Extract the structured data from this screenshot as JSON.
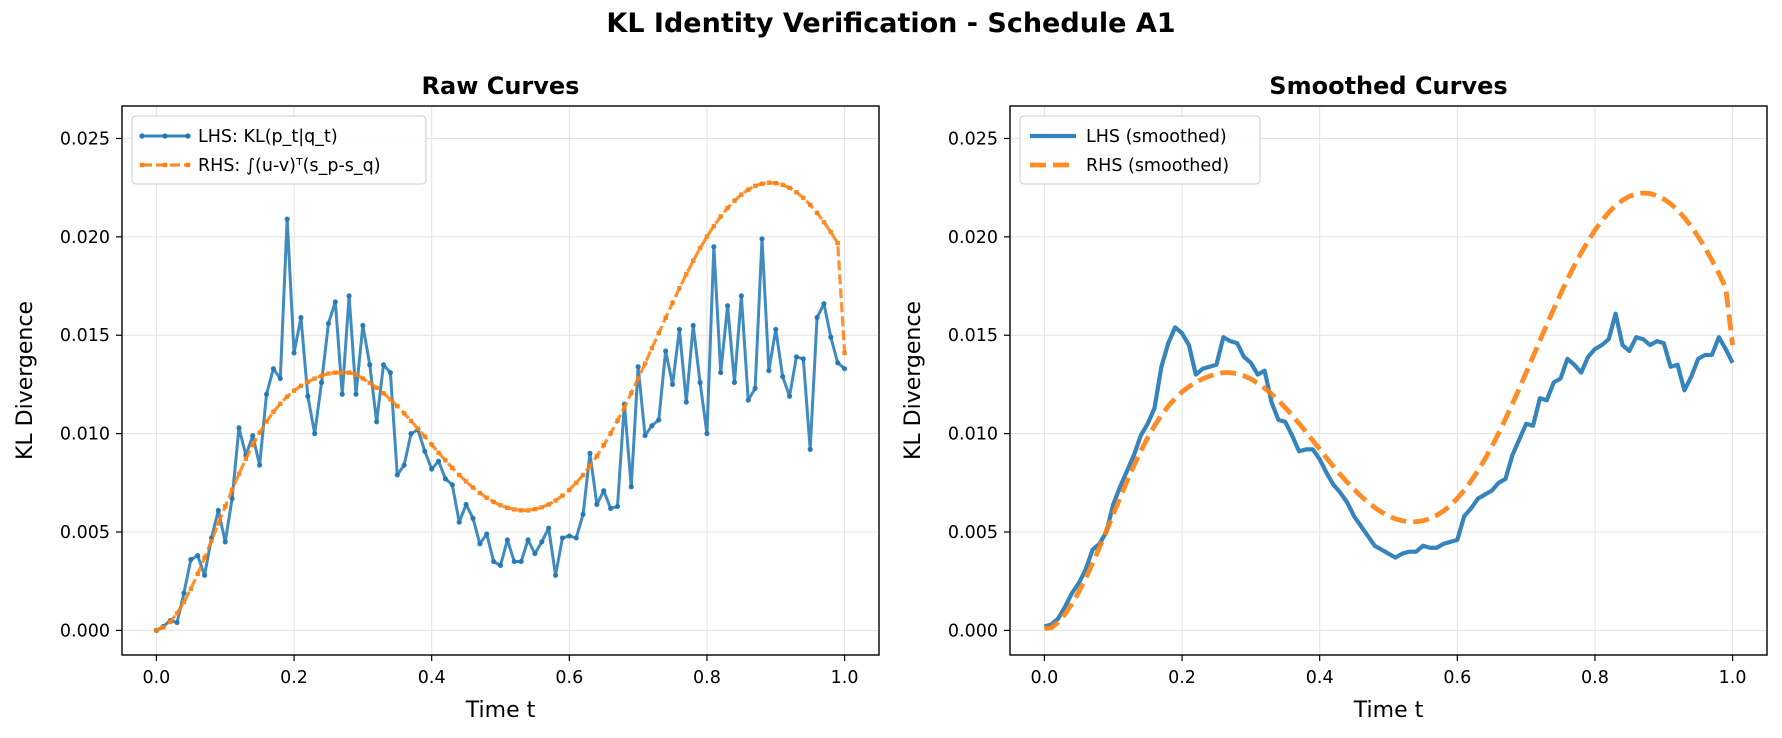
{
  "figure": {
    "title": "KL Identity Verification - Schedule A1"
  },
  "colors": {
    "lhs": "#1f77b4",
    "rhs": "#ff7f0e",
    "grid": "#e3e3e3",
    "axis": "#000000"
  },
  "chart_data": [
    {
      "type": "line",
      "title": "Raw Curves",
      "xlabel": "Time t",
      "ylabel": "KL Divergence",
      "xlim": [
        -0.05,
        1.05
      ],
      "ylim": [
        -0.00125,
        0.02665
      ],
      "xticks": [
        0.0,
        0.2,
        0.4,
        0.6,
        0.8,
        1.0
      ],
      "xtick_labels": [
        "0.0",
        "0.2",
        "0.4",
        "0.6",
        "0.8",
        "1.0"
      ],
      "yticks": [
        0.0,
        0.005,
        0.01,
        0.015,
        0.02,
        0.025
      ],
      "ytick_labels": [
        "0.000",
        "0.005",
        "0.010",
        "0.015",
        "0.020",
        "0.025"
      ],
      "grid": true,
      "legend_position": "top-left",
      "series": [
        {
          "name": "LHS: KL(p_t|q_t)",
          "style": "solid-with-dot-markers",
          "color": "#1f77b4",
          "x": [
            0.0,
            0.01,
            0.02,
            0.03,
            0.04,
            0.05,
            0.06,
            0.07,
            0.08,
            0.09,
            0.1,
            0.11,
            0.12,
            0.13,
            0.14,
            0.15,
            0.16,
            0.17,
            0.18,
            0.19,
            0.2,
            0.21,
            0.22,
            0.23,
            0.24,
            0.25,
            0.26,
            0.27,
            0.28,
            0.29,
            0.3,
            0.31,
            0.32,
            0.33,
            0.34,
            0.35,
            0.36,
            0.37,
            0.38,
            0.39,
            0.4,
            0.41,
            0.42,
            0.43,
            0.44,
            0.45,
            0.46,
            0.47,
            0.48,
            0.49,
            0.5,
            0.51,
            0.52,
            0.53,
            0.54,
            0.55,
            0.56,
            0.57,
            0.58,
            0.59,
            0.6,
            0.61,
            0.62,
            0.63,
            0.64,
            0.65,
            0.66,
            0.67,
            0.68,
            0.69,
            0.7,
            0.71,
            0.72,
            0.73,
            0.74,
            0.75,
            0.76,
            0.77,
            0.78,
            0.79,
            0.8,
            0.81,
            0.82,
            0.83,
            0.84,
            0.85,
            0.86,
            0.87,
            0.88,
            0.89,
            0.9,
            0.91,
            0.92,
            0.93,
            0.94,
            0.95,
            0.96,
            0.97,
            0.98,
            0.99,
            1.0
          ],
          "y": [
            0.0,
            0.0002,
            0.0005,
            0.0004,
            0.0019,
            0.0036,
            0.0038,
            0.0028,
            0.0047,
            0.0061,
            0.0045,
            0.0067,
            0.0103,
            0.0089,
            0.0099,
            0.0084,
            0.012,
            0.0133,
            0.0128,
            0.0209,
            0.0141,
            0.0159,
            0.0119,
            0.01,
            0.0126,
            0.0156,
            0.0167,
            0.012,
            0.017,
            0.012,
            0.0155,
            0.0135,
            0.0106,
            0.0135,
            0.0131,
            0.0079,
            0.0084,
            0.01,
            0.0102,
            0.0091,
            0.0082,
            0.0086,
            0.0077,
            0.0074,
            0.0055,
            0.0064,
            0.0057,
            0.0044,
            0.0049,
            0.0035,
            0.0033,
            0.0046,
            0.0035,
            0.0035,
            0.0046,
            0.0039,
            0.0045,
            0.0052,
            0.0028,
            0.0047,
            0.0048,
            0.0047,
            0.0059,
            0.009,
            0.0064,
            0.0071,
            0.0062,
            0.0063,
            0.0115,
            0.0073,
            0.0134,
            0.0099,
            0.0104,
            0.0107,
            0.0142,
            0.0125,
            0.0153,
            0.0116,
            0.0155,
            0.0126,
            0.01,
            0.0195,
            0.0131,
            0.0165,
            0.0126,
            0.017,
            0.0117,
            0.0123,
            0.0199,
            0.0132,
            0.0153,
            0.0129,
            0.0119,
            0.0139,
            0.0138,
            0.0092,
            0.0159,
            0.0166,
            0.0149,
            0.0136,
            0.0133
          ]
        },
        {
          "name": "RHS: ∫(u-v)ᵀ(s_p-s_q)",
          "style": "dashed-with-square-markers",
          "color": "#ff7f0e",
          "x": [
            0.0,
            0.01,
            0.02,
            0.03,
            0.04,
            0.05,
            0.06,
            0.07,
            0.08,
            0.09,
            0.1,
            0.11,
            0.12,
            0.13,
            0.14,
            0.15,
            0.16,
            0.17,
            0.18,
            0.19,
            0.2,
            0.21,
            0.22,
            0.23,
            0.24,
            0.25,
            0.26,
            0.27,
            0.28,
            0.29,
            0.3,
            0.31,
            0.32,
            0.33,
            0.34,
            0.35,
            0.36,
            0.37,
            0.38,
            0.39,
            0.4,
            0.41,
            0.42,
            0.43,
            0.44,
            0.45,
            0.46,
            0.47,
            0.48,
            0.49,
            0.5,
            0.51,
            0.52,
            0.53,
            0.54,
            0.55,
            0.56,
            0.57,
            0.58,
            0.59,
            0.6,
            0.61,
            0.62,
            0.63,
            0.64,
            0.65,
            0.66,
            0.67,
            0.68,
            0.69,
            0.7,
            0.71,
            0.72,
            0.73,
            0.74,
            0.75,
            0.76,
            0.77,
            0.78,
            0.79,
            0.8,
            0.81,
            0.82,
            0.83,
            0.84,
            0.85,
            0.86,
            0.87,
            0.88,
            0.89,
            0.9,
            0.91,
            0.92,
            0.93,
            0.94,
            0.95,
            0.96,
            0.97,
            0.98,
            0.99,
            1.0
          ],
          "y": [
            0.0,
            0.00015,
            0.00043,
            0.00087,
            0.00144,
            0.00211,
            0.00287,
            0.00369,
            0.00455,
            0.00543,
            0.0063,
            0.00715,
            0.00796,
            0.00872,
            0.00942,
            0.01005,
            0.01061,
            0.0111,
            0.01152,
            0.01188,
            0.01218,
            0.01243,
            0.01263,
            0.0128,
            0.01294,
            0.01305,
            0.0131,
            0.0131,
            0.0131,
            0.013,
            0.0128,
            0.01258,
            0.01233,
            0.01205,
            0.01174,
            0.0114,
            0.01103,
            0.01065,
            0.01025,
            0.00985,
            0.00944,
            0.00903,
            0.00864,
            0.00826,
            0.0079,
            0.00757,
            0.00726,
            0.00698,
            0.00674,
            0.00653,
            0.00636,
            0.00623,
            0.00615,
            0.0061,
            0.0061,
            0.00616,
            0.00626,
            0.0064,
            0.0066,
            0.00685,
            0.00714,
            0.0075,
            0.0079,
            0.00835,
            0.00886,
            0.00941,
            0.01001,
            0.01066,
            0.01134,
            0.01206,
            0.0128,
            0.01356,
            0.01434,
            0.01511,
            0.01589,
            0.01665,
            0.01739,
            0.0181,
            0.01878,
            0.01942,
            0.02001,
            0.02055,
            0.02104,
            0.02147,
            0.02184,
            0.02215,
            0.0224,
            0.02259,
            0.0227,
            0.02275,
            0.02273,
            0.02264,
            0.02249,
            0.02227,
            0.02198,
            0.02163,
            0.02122,
            0.02075,
            0.02024,
            0.01968,
            0.0141
          ]
        }
      ]
    },
    {
      "type": "line",
      "title": "Smoothed Curves",
      "xlabel": "Time t",
      "ylabel": "KL Divergence",
      "xlim": [
        -0.05,
        1.05
      ],
      "ylim": [
        -0.00125,
        0.02665
      ],
      "xticks": [
        0.0,
        0.2,
        0.4,
        0.6,
        0.8,
        1.0
      ],
      "xtick_labels": [
        "0.0",
        "0.2",
        "0.4",
        "0.6",
        "0.8",
        "1.0"
      ],
      "yticks": [
        0.0,
        0.005,
        0.01,
        0.015,
        0.02,
        0.025
      ],
      "ytick_labels": [
        "0.000",
        "0.005",
        "0.010",
        "0.015",
        "0.020",
        "0.025"
      ],
      "grid": true,
      "legend_position": "top-left",
      "series": [
        {
          "name": "LHS (smoothed)",
          "style": "solid-thick",
          "color": "#1f77b4",
          "x": [
            0.0,
            0.01,
            0.02,
            0.03,
            0.04,
            0.05,
            0.06,
            0.07,
            0.08,
            0.09,
            0.1,
            0.11,
            0.12,
            0.13,
            0.14,
            0.15,
            0.16,
            0.17,
            0.18,
            0.19,
            0.2,
            0.21,
            0.22,
            0.23,
            0.24,
            0.25,
            0.26,
            0.27,
            0.28,
            0.29,
            0.3,
            0.31,
            0.32,
            0.33,
            0.34,
            0.35,
            0.36,
            0.37,
            0.38,
            0.39,
            0.4,
            0.41,
            0.42,
            0.43,
            0.44,
            0.45,
            0.46,
            0.47,
            0.48,
            0.49,
            0.5,
            0.51,
            0.52,
            0.53,
            0.54,
            0.55,
            0.56,
            0.57,
            0.58,
            0.59,
            0.6,
            0.61,
            0.62,
            0.63,
            0.64,
            0.65,
            0.66,
            0.67,
            0.68,
            0.69,
            0.7,
            0.71,
            0.72,
            0.73,
            0.74,
            0.75,
            0.76,
            0.77,
            0.78,
            0.79,
            0.8,
            0.81,
            0.82,
            0.83,
            0.84,
            0.85,
            0.86,
            0.87,
            0.88,
            0.89,
            0.9,
            0.91,
            0.92,
            0.93,
            0.94,
            0.95,
            0.96,
            0.97,
            0.98,
            0.99,
            1.0
          ],
          "y": [
            0.0002,
            0.0003,
            0.0006,
            0.0012,
            0.0019,
            0.0024,
            0.0031,
            0.0041,
            0.0044,
            0.005,
            0.0064,
            0.0073,
            0.0081,
            0.0089,
            0.0099,
            0.0105,
            0.0113,
            0.0134,
            0.0146,
            0.0154,
            0.0151,
            0.0145,
            0.013,
            0.0133,
            0.0134,
            0.0135,
            0.0149,
            0.0147,
            0.0146,
            0.0139,
            0.0136,
            0.013,
            0.0132,
            0.0116,
            0.0107,
            0.0106,
            0.0099,
            0.0091,
            0.0092,
            0.0092,
            0.0087,
            0.008,
            0.0074,
            0.007,
            0.0065,
            0.0058,
            0.0053,
            0.0048,
            0.0043,
            0.0041,
            0.0039,
            0.0037,
            0.0039,
            0.004,
            0.004,
            0.0043,
            0.0042,
            0.0042,
            0.0044,
            0.0045,
            0.0046,
            0.0058,
            0.0062,
            0.0067,
            0.0069,
            0.0071,
            0.0075,
            0.0077,
            0.0089,
            0.0097,
            0.0105,
            0.0104,
            0.0118,
            0.0117,
            0.0126,
            0.0128,
            0.0138,
            0.0135,
            0.0131,
            0.0139,
            0.0143,
            0.0145,
            0.0148,
            0.0161,
            0.0145,
            0.0142,
            0.0149,
            0.0148,
            0.0145,
            0.0147,
            0.0146,
            0.0134,
            0.0135,
            0.0122,
            0.0129,
            0.0138,
            0.014,
            0.014,
            0.0149,
            0.0143,
            0.0136
          ]
        },
        {
          "name": "RHS (smoothed)",
          "style": "dashed-thick",
          "color": "#ff7f0e",
          "x": [
            0.0,
            0.01,
            0.02,
            0.03,
            0.04,
            0.05,
            0.06,
            0.07,
            0.08,
            0.09,
            0.1,
            0.11,
            0.12,
            0.13,
            0.14,
            0.15,
            0.16,
            0.17,
            0.18,
            0.19,
            0.2,
            0.21,
            0.22,
            0.23,
            0.24,
            0.25,
            0.26,
            0.27,
            0.28,
            0.29,
            0.3,
            0.31,
            0.32,
            0.33,
            0.34,
            0.35,
            0.36,
            0.37,
            0.38,
            0.39,
            0.4,
            0.41,
            0.42,
            0.43,
            0.44,
            0.45,
            0.46,
            0.47,
            0.48,
            0.49,
            0.5,
            0.51,
            0.52,
            0.53,
            0.54,
            0.55,
            0.56,
            0.57,
            0.58,
            0.59,
            0.6,
            0.61,
            0.62,
            0.63,
            0.64,
            0.65,
            0.66,
            0.67,
            0.68,
            0.69,
            0.7,
            0.71,
            0.72,
            0.73,
            0.74,
            0.75,
            0.76,
            0.77,
            0.78,
            0.79,
            0.8,
            0.81,
            0.82,
            0.83,
            0.84,
            0.85,
            0.86,
            0.87,
            0.88,
            0.89,
            0.9,
            0.91,
            0.92,
            0.93,
            0.94,
            0.95,
            0.96,
            0.97,
            0.98,
            0.99,
            1.0
          ],
          "y": [
            0.0001,
            0.00013,
            0.00042,
            0.00083,
            0.00135,
            0.00196,
            0.00265,
            0.00341,
            0.00421,
            0.00505,
            0.0059,
            0.00675,
            0.00758,
            0.00837,
            0.00911,
            0.00979,
            0.0104,
            0.01094,
            0.0114,
            0.01179,
            0.01212,
            0.01239,
            0.01261,
            0.01279,
            0.01292,
            0.01303,
            0.0131,
            0.0131,
            0.01305,
            0.01294,
            0.01278,
            0.01256,
            0.01231,
            0.01202,
            0.01169,
            0.01132,
            0.01093,
            0.01052,
            0.01009,
            0.00965,
            0.00921,
            0.00876,
            0.00833,
            0.00792,
            0.00753,
            0.00716,
            0.00682,
            0.00652,
            0.00624,
            0.00601,
            0.00582,
            0.00567,
            0.00557,
            0.00552,
            0.00552,
            0.00557,
            0.00568,
            0.00585,
            0.00607,
            0.00636,
            0.00671,
            0.00712,
            0.00759,
            0.00812,
            0.0087,
            0.00934,
            0.01002,
            0.01075,
            0.01151,
            0.01229,
            0.0131,
            0.01391,
            0.01473,
            0.01554,
            0.01633,
            0.0171,
            0.01784,
            0.01854,
            0.01919,
            0.01979,
            0.02034,
            0.02082,
            0.02124,
            0.02159,
            0.02186,
            0.02206,
            0.02218,
            0.02223,
            0.0222,
            0.0221,
            0.02192,
            0.02168,
            0.02136,
            0.02097,
            0.02052,
            0.02001,
            0.01944,
            0.01881,
            0.01814,
            0.01742,
            0.0145
          ]
        }
      ]
    }
  ]
}
